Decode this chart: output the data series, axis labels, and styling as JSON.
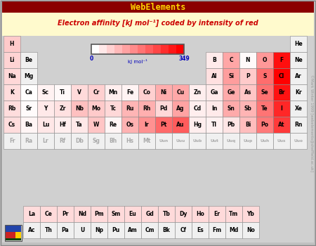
{
  "title_bar": "WebElements",
  "title_bar_bg": "#8B0000",
  "title_bar_text_color": "#FFD700",
  "subtitle": "Electron affinity [kJ mol⁻¹] coded by intensity of red",
  "subtitle_color": "#CC0000",
  "subtitle_bg": "#FFFACD",
  "outer_bg": "#C0C0C0",
  "table_bg": "#D0D0D0",
  "watermark": "©Mark Winter 1999 [webelements@sheffield.ac.uk]",
  "colorbar_min_label": "0",
  "colorbar_max_label": "349",
  "colorbar_unit": "kJ mol⁻¹",
  "elements": [
    {
      "symbol": "H",
      "row": 0,
      "col": 0,
      "ea": 73
    },
    {
      "symbol": "He",
      "row": 0,
      "col": 17,
      "ea": -1
    },
    {
      "symbol": "Li",
      "row": 1,
      "col": 0,
      "ea": 60
    },
    {
      "symbol": "Be",
      "row": 1,
      "col": 1,
      "ea": -1
    },
    {
      "symbol": "B",
      "row": 1,
      "col": 12,
      "ea": 27
    },
    {
      "symbol": "C",
      "row": 1,
      "col": 13,
      "ea": 122
    },
    {
      "symbol": "N",
      "row": 1,
      "col": 14,
      "ea": 7
    },
    {
      "symbol": "O",
      "row": 1,
      "col": 15,
      "ea": 141
    },
    {
      "symbol": "F",
      "row": 1,
      "col": 16,
      "ea": 328
    },
    {
      "symbol": "Ne",
      "row": 1,
      "col": 17,
      "ea": -1
    },
    {
      "symbol": "Na",
      "row": 2,
      "col": 0,
      "ea": 53
    },
    {
      "symbol": "Mg",
      "row": 2,
      "col": 1,
      "ea": -1
    },
    {
      "symbol": "Al",
      "row": 2,
      "col": 12,
      "ea": 43
    },
    {
      "symbol": "Si",
      "row": 2,
      "col": 13,
      "ea": 134
    },
    {
      "symbol": "P",
      "row": 2,
      "col": 14,
      "ea": 72
    },
    {
      "symbol": "S",
      "row": 2,
      "col": 15,
      "ea": 200
    },
    {
      "symbol": "Cl",
      "row": 2,
      "col": 16,
      "ea": 349
    },
    {
      "symbol": "Ar",
      "row": 2,
      "col": 17,
      "ea": -1
    },
    {
      "symbol": "K",
      "row": 3,
      "col": 0,
      "ea": 48
    },
    {
      "symbol": "Ca",
      "row": 3,
      "col": 1,
      "ea": 2
    },
    {
      "symbol": "Sc",
      "row": 3,
      "col": 2,
      "ea": 18
    },
    {
      "symbol": "Ti",
      "row": 3,
      "col": 3,
      "ea": 8
    },
    {
      "symbol": "V",
      "row": 3,
      "col": 4,
      "ea": 51
    },
    {
      "symbol": "Cr",
      "row": 3,
      "col": 5,
      "ea": 64
    },
    {
      "symbol": "Mn",
      "row": 3,
      "col": 6,
      "ea": 0
    },
    {
      "symbol": "Fe",
      "row": 3,
      "col": 7,
      "ea": 16
    },
    {
      "symbol": "Co",
      "row": 3,
      "col": 8,
      "ea": 64
    },
    {
      "symbol": "Ni",
      "row": 3,
      "col": 9,
      "ea": 112
    },
    {
      "symbol": "Cu",
      "row": 3,
      "col": 10,
      "ea": 119
    },
    {
      "symbol": "Zn",
      "row": 3,
      "col": 11,
      "ea": 0
    },
    {
      "symbol": "Ga",
      "row": 3,
      "col": 12,
      "ea": 29
    },
    {
      "symbol": "Ge",
      "row": 3,
      "col": 13,
      "ea": 116
    },
    {
      "symbol": "As",
      "row": 3,
      "col": 14,
      "ea": 78
    },
    {
      "symbol": "Se",
      "row": 3,
      "col": 15,
      "ea": 195
    },
    {
      "symbol": "Br",
      "row": 3,
      "col": 16,
      "ea": 325
    },
    {
      "symbol": "Kr",
      "row": 3,
      "col": 17,
      "ea": -1
    },
    {
      "symbol": "Rb",
      "row": 4,
      "col": 0,
      "ea": 47
    },
    {
      "symbol": "Sr",
      "row": 4,
      "col": 1,
      "ea": 5
    },
    {
      "symbol": "Y",
      "row": 4,
      "col": 2,
      "ea": 30
    },
    {
      "symbol": "Zr",
      "row": 4,
      "col": 3,
      "ea": 41
    },
    {
      "symbol": "Nb",
      "row": 4,
      "col": 4,
      "ea": 86
    },
    {
      "symbol": "Mo",
      "row": 4,
      "col": 5,
      "ea": 72
    },
    {
      "symbol": "Tc",
      "row": 4,
      "col": 6,
      "ea": 53
    },
    {
      "symbol": "Ru",
      "row": 4,
      "col": 7,
      "ea": 101
    },
    {
      "symbol": "Rh",
      "row": 4,
      "col": 8,
      "ea": 110
    },
    {
      "symbol": "Pd",
      "row": 4,
      "col": 9,
      "ea": 54
    },
    {
      "symbol": "Ag",
      "row": 4,
      "col": 10,
      "ea": 126
    },
    {
      "symbol": "Cd",
      "row": 4,
      "col": 11,
      "ea": 0
    },
    {
      "symbol": "In",
      "row": 4,
      "col": 12,
      "ea": 29
    },
    {
      "symbol": "Sn",
      "row": 4,
      "col": 13,
      "ea": 116
    },
    {
      "symbol": "Sb",
      "row": 4,
      "col": 14,
      "ea": 103
    },
    {
      "symbol": "Te",
      "row": 4,
      "col": 15,
      "ea": 190
    },
    {
      "symbol": "I",
      "row": 4,
      "col": 16,
      "ea": 295
    },
    {
      "symbol": "Xe",
      "row": 4,
      "col": 17,
      "ea": -1
    },
    {
      "symbol": "Cs",
      "row": 5,
      "col": 0,
      "ea": 46
    },
    {
      "symbol": "Ba",
      "row": 5,
      "col": 1,
      "ea": 14
    },
    {
      "symbol": "Lu",
      "row": 5,
      "col": 2,
      "ea": 33
    },
    {
      "symbol": "Hf",
      "row": 5,
      "col": 3,
      "ea": 0
    },
    {
      "symbol": "Ta",
      "row": 5,
      "col": 4,
      "ea": 31
    },
    {
      "symbol": "W",
      "row": 5,
      "col": 5,
      "ea": 79
    },
    {
      "symbol": "Re",
      "row": 5,
      "col": 6,
      "ea": 14
    },
    {
      "symbol": "Os",
      "row": 5,
      "col": 7,
      "ea": 106
    },
    {
      "symbol": "Ir",
      "row": 5,
      "col": 8,
      "ea": 151
    },
    {
      "symbol": "Pt",
      "row": 5,
      "col": 9,
      "ea": 205
    },
    {
      "symbol": "Au",
      "row": 5,
      "col": 10,
      "ea": 223
    },
    {
      "symbol": "Hg",
      "row": 5,
      "col": 11,
      "ea": 0
    },
    {
      "symbol": "Tl",
      "row": 5,
      "col": 12,
      "ea": 19
    },
    {
      "symbol": "Pb",
      "row": 5,
      "col": 13,
      "ea": 35
    },
    {
      "symbol": "Bi",
      "row": 5,
      "col": 14,
      "ea": 91
    },
    {
      "symbol": "Po",
      "row": 5,
      "col": 15,
      "ea": 183
    },
    {
      "symbol": "At",
      "row": 5,
      "col": 16,
      "ea": 270
    },
    {
      "symbol": "Rn",
      "row": 5,
      "col": 17,
      "ea": -1
    },
    {
      "symbol": "Fr",
      "row": 6,
      "col": 0,
      "ea": -2
    },
    {
      "symbol": "Ra",
      "row": 6,
      "col": 1,
      "ea": -2
    },
    {
      "symbol": "Lr",
      "row": 6,
      "col": 2,
      "ea": -2
    },
    {
      "symbol": "Rf",
      "row": 6,
      "col": 3,
      "ea": -2
    },
    {
      "symbol": "Db",
      "row": 6,
      "col": 4,
      "ea": -2
    },
    {
      "symbol": "Sg",
      "row": 6,
      "col": 5,
      "ea": -2
    },
    {
      "symbol": "Bh",
      "row": 6,
      "col": 6,
      "ea": -2
    },
    {
      "symbol": "Hs",
      "row": 6,
      "col": 7,
      "ea": -2
    },
    {
      "symbol": "Mt",
      "row": 6,
      "col": 8,
      "ea": -2
    },
    {
      "symbol": "Uun",
      "row": 6,
      "col": 9,
      "ea": -2
    },
    {
      "symbol": "Uuu",
      "row": 6,
      "col": 10,
      "ea": -2
    },
    {
      "symbol": "Uub",
      "row": 6,
      "col": 11,
      "ea": -2
    },
    {
      "symbol": "Uut",
      "row": 6,
      "col": 12,
      "ea": -2
    },
    {
      "symbol": "Uuq",
      "row": 6,
      "col": 13,
      "ea": -2
    },
    {
      "symbol": "Uup",
      "row": 6,
      "col": 14,
      "ea": -2
    },
    {
      "symbol": "Uuh",
      "row": 6,
      "col": 15,
      "ea": -2
    },
    {
      "symbol": "Uus",
      "row": 6,
      "col": 16,
      "ea": -2
    },
    {
      "symbol": "Uuo",
      "row": 6,
      "col": 17,
      "ea": -2
    },
    {
      "symbol": "La",
      "row": 8,
      "col": 2,
      "ea": 48
    },
    {
      "symbol": "Ce",
      "row": 8,
      "col": 3,
      "ea": 50
    },
    {
      "symbol": "Pr",
      "row": 8,
      "col": 4,
      "ea": 50
    },
    {
      "symbol": "Nd",
      "row": 8,
      "col": 5,
      "ea": 50
    },
    {
      "symbol": "Pm",
      "row": 8,
      "col": 6,
      "ea": 50
    },
    {
      "symbol": "Sm",
      "row": 8,
      "col": 7,
      "ea": 50
    },
    {
      "symbol": "Eu",
      "row": 8,
      "col": 8,
      "ea": 50
    },
    {
      "symbol": "Gd",
      "row": 8,
      "col": 9,
      "ea": 50
    },
    {
      "symbol": "Tb",
      "row": 8,
      "col": 10,
      "ea": 50
    },
    {
      "symbol": "Dy",
      "row": 8,
      "col": 11,
      "ea": 50
    },
    {
      "symbol": "Ho",
      "row": 8,
      "col": 12,
      "ea": 50
    },
    {
      "symbol": "Er",
      "row": 8,
      "col": 13,
      "ea": 50
    },
    {
      "symbol": "Tm",
      "row": 8,
      "col": 14,
      "ea": 50
    },
    {
      "symbol": "Yb",
      "row": 8,
      "col": 15,
      "ea": 50
    },
    {
      "symbol": "Ac",
      "row": 9,
      "col": 2,
      "ea": -1
    },
    {
      "symbol": "Th",
      "row": 9,
      "col": 3,
      "ea": -1
    },
    {
      "symbol": "Pa",
      "row": 9,
      "col": 4,
      "ea": -1
    },
    {
      "symbol": "U",
      "row": 9,
      "col": 5,
      "ea": -1
    },
    {
      "symbol": "Np",
      "row": 9,
      "col": 6,
      "ea": -1
    },
    {
      "symbol": "Pu",
      "row": 9,
      "col": 7,
      "ea": -1
    },
    {
      "symbol": "Am",
      "row": 9,
      "col": 8,
      "ea": -1
    },
    {
      "symbol": "Cm",
      "row": 9,
      "col": 9,
      "ea": -1
    },
    {
      "symbol": "Bk",
      "row": 9,
      "col": 10,
      "ea": -1
    },
    {
      "symbol": "Cf",
      "row": 9,
      "col": 11,
      "ea": -1
    },
    {
      "symbol": "Es",
      "row": 9,
      "col": 12,
      "ea": -1
    },
    {
      "symbol": "Fm",
      "row": 9,
      "col": 13,
      "ea": -1
    },
    {
      "symbol": "Md",
      "row": 9,
      "col": 14,
      "ea": -1
    },
    {
      "symbol": "No",
      "row": 9,
      "col": 15,
      "ea": -1
    }
  ]
}
